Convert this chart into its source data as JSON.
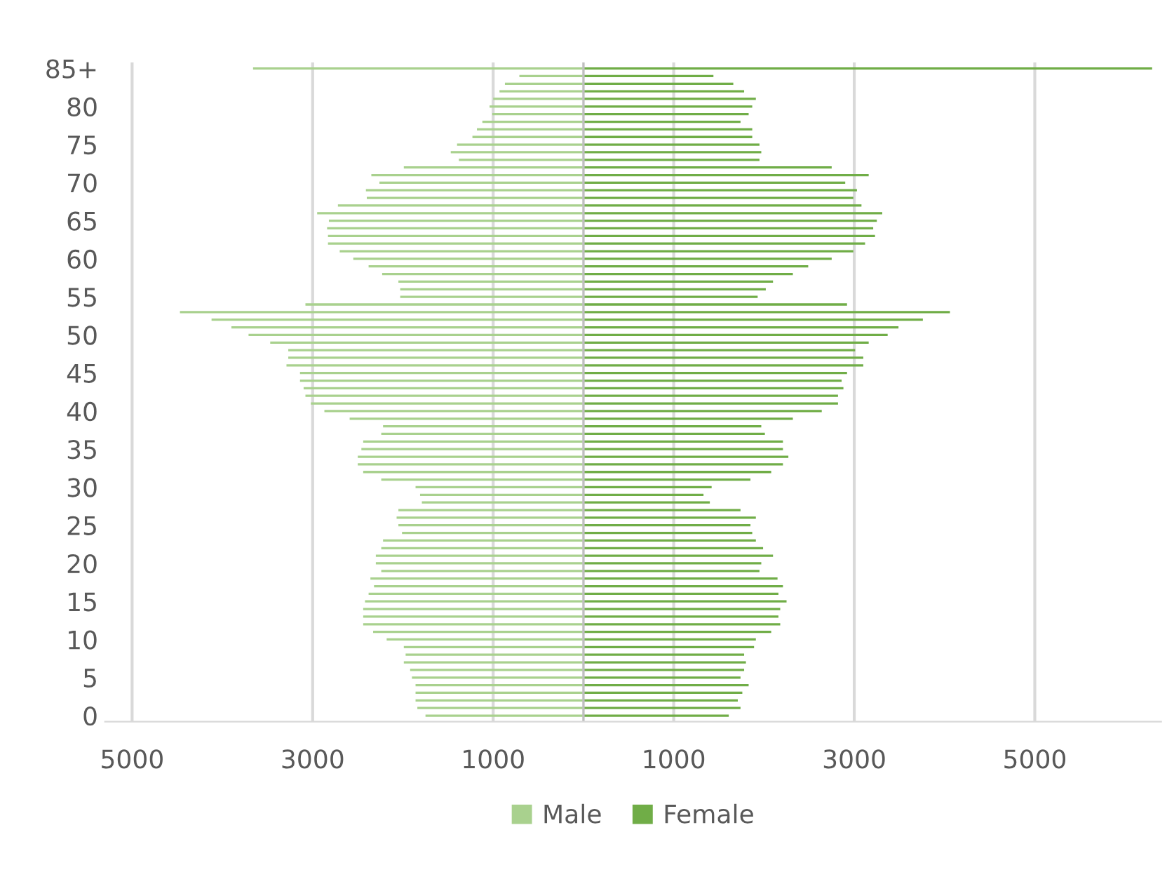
{
  "chart_data": {
    "type": "bar",
    "orientation": "horizontal",
    "categories": [
      "85+",
      null,
      null,
      null,
      null,
      "80",
      null,
      null,
      null,
      null,
      "75",
      null,
      null,
      null,
      null,
      "70",
      null,
      null,
      null,
      null,
      "65",
      null,
      null,
      null,
      null,
      "60",
      null,
      null,
      null,
      null,
      "55",
      null,
      null,
      null,
      null,
      "50",
      null,
      null,
      null,
      null,
      "45",
      null,
      null,
      null,
      null,
      "40",
      null,
      null,
      null,
      null,
      "35",
      null,
      null,
      null,
      null,
      "30",
      null,
      null,
      null,
      null,
      "25",
      null,
      null,
      null,
      null,
      "20",
      null,
      null,
      null,
      null,
      "15",
      null,
      null,
      null,
      null,
      "10",
      null,
      null,
      null,
      null,
      "5",
      null,
      null,
      null,
      null,
      "0"
    ],
    "series": [
      {
        "name": "Male",
        "color": "#a9d18e",
        "values": [
          -3660,
          -710,
          -870,
          -930,
          -1000,
          -1040,
          -1010,
          -1120,
          -1180,
          -1230,
          -1400,
          -1470,
          -1380,
          -1990,
          -2350,
          -2260,
          -2410,
          -2400,
          -2720,
          -2950,
          -2820,
          -2840,
          -2830,
          -2830,
          -2700,
          -2550,
          -2380,
          -2230,
          -2050,
          -2030,
          -2030,
          -3080,
          -4470,
          -4120,
          -3900,
          -3710,
          -3470,
          -3270,
          -3270,
          -3290,
          -3140,
          -3140,
          -3100,
          -3080,
          -3020,
          -2870,
          -2590,
          -2220,
          -2240,
          -2440,
          -2460,
          -2500,
          -2500,
          -2440,
          -2240,
          -1860,
          -1810,
          -1790,
          -2050,
          -2070,
          -2050,
          -2010,
          -2220,
          -2240,
          -2300,
          -2300,
          -2240,
          -2360,
          -2320,
          -2380,
          -2420,
          -2440,
          -2440,
          -2440,
          -2330,
          -2180,
          -1990,
          -1970,
          -1990,
          -1920,
          -1900,
          -1860,
          -1860,
          -1860,
          -1840,
          -1750
        ]
      },
      {
        "name": "Female",
        "color": "#70ad47",
        "values": [
          6300,
          1440,
          1660,
          1780,
          1910,
          1870,
          1830,
          1740,
          1870,
          1870,
          1950,
          1970,
          1950,
          2750,
          3160,
          2900,
          3030,
          2990,
          3080,
          3310,
          3250,
          3210,
          3230,
          3120,
          2990,
          2750,
          2490,
          2320,
          2100,
          2020,
          1930,
          2920,
          4060,
          3760,
          3490,
          3370,
          3160,
          3010,
          3100,
          3100,
          2920,
          2860,
          2880,
          2820,
          2820,
          2640,
          2320,
          1970,
          2010,
          2210,
          2210,
          2270,
          2210,
          2080,
          1850,
          1420,
          1330,
          1400,
          1740,
          1910,
          1850,
          1870,
          1910,
          1990,
          2100,
          1970,
          1950,
          2150,
          2210,
          2160,
          2250,
          2180,
          2160,
          2180,
          2080,
          1910,
          1890,
          1780,
          1800,
          1780,
          1740,
          1830,
          1760,
          1710,
          1740,
          1610
        ]
      }
    ],
    "xlim": [
      -5300,
      6400
    ],
    "xticks": [
      {
        "value": -5000,
        "label": "5000"
      },
      {
        "value": -3000,
        "label": "3000"
      },
      {
        "value": -1000,
        "label": "1000"
      },
      1000,
      3000,
      5000
    ],
    "grid": "x",
    "legend": "bottom"
  }
}
